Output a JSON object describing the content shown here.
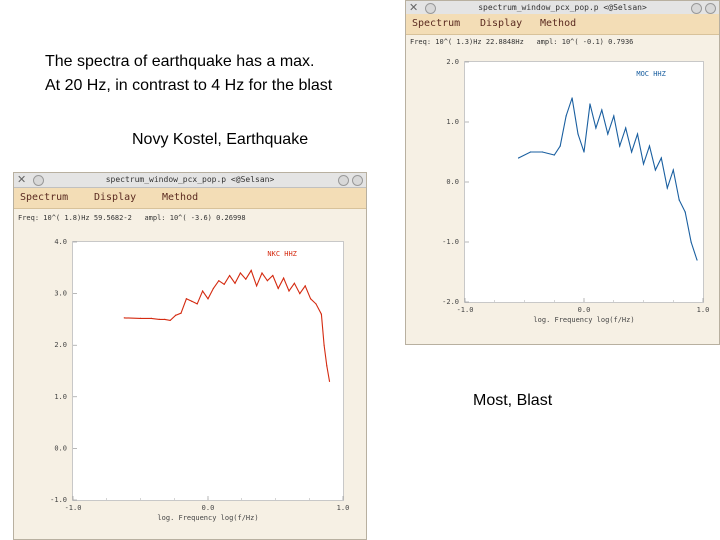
{
  "captions": {
    "line1": "The spectra of earthquake has a max.",
    "line2": "At 20 Hz, in contrast to 4 Hz for the blast",
    "earthquake": "Novy Kostel, Earthquake",
    "blast": "Most, Blast"
  },
  "windows": [
    {
      "title": "spectrum_window_pcx_pop.p <@Selsan>",
      "menu": [
        "Spectrum",
        "Display",
        "Method"
      ],
      "readout_freq": "Freq: 10^( 1.8)Hz  59.5682-2",
      "readout_ampl": "ampl: 10^( -3.6)  0.26998",
      "legend": "NKC HHZ",
      "series_color": "#d42a10",
      "ylabel_ticks": [
        "4.0",
        "3.0",
        "2.0",
        "1.0",
        "0.0",
        "-1.0"
      ],
      "xlabel_ticks": [
        "-1.0",
        "0.0",
        "1.0"
      ],
      "xlabel": "log. Frequency log(f/Hz)"
    },
    {
      "title": "spectrum_window_pcx_pop.p <@Selsan>",
      "menu": [
        "Spectrum",
        "Display",
        "Method"
      ],
      "readout_freq": "Freq: 10^( 1.3)Hz  22.8848Hz",
      "readout_ampl": "ampl: 10^( -0.1)  0.7936",
      "legend": "MOC HHZ",
      "series_color": "#1a5fa0",
      "ylabel_ticks": [
        "2.0",
        "1.0",
        "0.0",
        "-1.0",
        "-2.0"
      ],
      "xlabel_ticks": [
        "-1.0",
        "0.0",
        "1.0"
      ],
      "xlabel": "log. Frequency log(f/Hz)"
    }
  ],
  "chart_data": [
    {
      "type": "line",
      "title": "",
      "xlabel": "log. Frequency log(f/Hz)",
      "ylabel": "",
      "xlim": [
        -1.0,
        1.0
      ],
      "ylim": [
        -1.0,
        4.0
      ],
      "series": [
        {
          "name": "NKC HHZ",
          "x": [
            -0.62,
            -0.5,
            -0.42,
            -0.36,
            -0.32,
            -0.28,
            -0.24,
            -0.2,
            -0.16,
            -0.12,
            -0.08,
            -0.04,
            0.0,
            0.04,
            0.08,
            0.12,
            0.16,
            0.2,
            0.24,
            0.28,
            0.32,
            0.36,
            0.4,
            0.44,
            0.48,
            0.52,
            0.56,
            0.6,
            0.64,
            0.68,
            0.72,
            0.76,
            0.8,
            0.84,
            0.86,
            0.88,
            0.9
          ],
          "y": [
            2.53,
            2.52,
            2.52,
            2.5,
            2.5,
            2.48,
            2.58,
            2.62,
            2.9,
            2.85,
            2.8,
            3.05,
            2.9,
            3.1,
            3.25,
            3.18,
            3.35,
            3.2,
            3.4,
            3.28,
            3.45,
            3.15,
            3.4,
            3.25,
            3.35,
            3.1,
            3.3,
            3.05,
            3.2,
            3.0,
            3.15,
            2.9,
            2.8,
            2.6,
            2.0,
            1.6,
            1.3
          ]
        }
      ]
    },
    {
      "type": "line",
      "title": "",
      "xlabel": "log. Frequency log(f/Hz)",
      "ylabel": "",
      "xlim": [
        -1.0,
        1.0
      ],
      "ylim": [
        -2.0,
        2.0
      ],
      "series": [
        {
          "name": "MOC HHZ",
          "x": [
            -0.55,
            -0.45,
            -0.35,
            -0.25,
            -0.2,
            -0.15,
            -0.1,
            -0.05,
            0.0,
            0.05,
            0.1,
            0.15,
            0.2,
            0.25,
            0.3,
            0.35,
            0.4,
            0.45,
            0.5,
            0.55,
            0.6,
            0.65,
            0.7,
            0.75,
            0.8,
            0.85,
            0.9,
            0.95
          ],
          "y": [
            0.4,
            0.5,
            0.5,
            0.45,
            0.6,
            1.1,
            1.4,
            0.8,
            0.5,
            1.3,
            0.9,
            1.2,
            0.8,
            1.1,
            0.6,
            0.9,
            0.5,
            0.8,
            0.3,
            0.6,
            0.2,
            0.4,
            -0.1,
            0.2,
            -0.3,
            -0.5,
            -1.0,
            -1.3
          ]
        }
      ]
    }
  ]
}
